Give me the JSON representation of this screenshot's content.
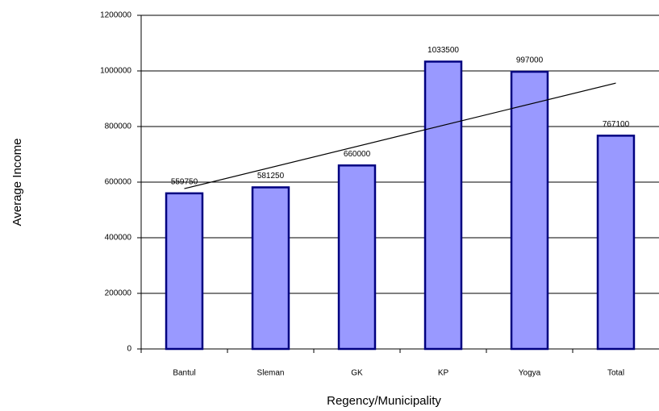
{
  "chart_data": {
    "type": "bar",
    "x_label": "Regency/Municipality",
    "y_label": "Average Income",
    "categories": [
      "Bantul",
      "Sleman",
      "GK",
      "KP",
      "Yogya",
      "Total"
    ],
    "values": [
      559750,
      581250,
      660000,
      1033500,
      997000,
      767100
    ],
    "color": "#9999ff",
    "edge_color": "#000080",
    "ylim": [
      0,
      1200000
    ],
    "yticks": [
      0,
      200000,
      400000,
      600000,
      800000,
      1000000,
      1200000
    ],
    "grid": true,
    "trendline": {
      "values": [
        576611,
        956254
      ],
      "color": "#000000"
    }
  }
}
